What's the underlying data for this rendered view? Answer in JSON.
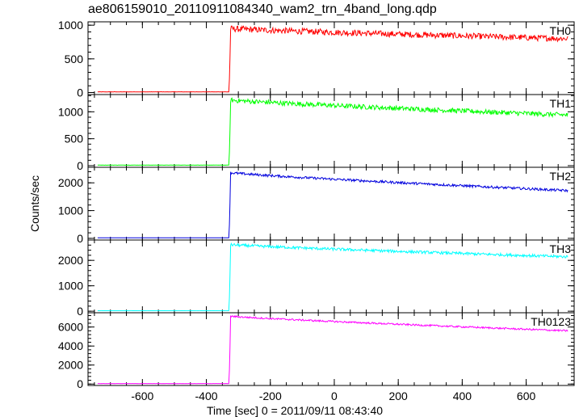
{
  "chart_data": {
    "type": "line",
    "title": "ae806159010_20110911084340_wam2_trn_4band_long.qdp",
    "xlabel": "Time [sec] 0 = 2011/09/11 08:43:40",
    "ylabel": "Counts/sec",
    "xlim": [
      -770,
      750
    ],
    "xticks": [
      -600,
      -400,
      -200,
      0,
      200,
      400,
      600
    ],
    "grid": false,
    "panels": [
      {
        "name": "TH0",
        "color": "#ff0000",
        "ylim": [
          -30,
          1050
        ],
        "yticks": [
          0,
          500,
          1000
        ],
        "pre_level": 10,
        "onset": -330,
        "peak": 950,
        "end_level": 800,
        "noise": 45
      },
      {
        "name": "TH1",
        "color": "#00ff00",
        "ylim": [
          -30,
          1320
        ],
        "yticks": [
          0,
          500,
          1000
        ],
        "pre_level": 10,
        "onset": -330,
        "peak": 1220,
        "end_level": 940,
        "noise": 45
      },
      {
        "name": "TH2",
        "color": "#0000dd",
        "ylim": [
          -60,
          2560
        ],
        "yticks": [
          0,
          1000,
          2000
        ],
        "pre_level": 20,
        "onset": -330,
        "peak": 2370,
        "end_level": 1720,
        "noise": 45
      },
      {
        "name": "TH3",
        "color": "#00ffff",
        "ylim": [
          -60,
          2800
        ],
        "yticks": [
          0,
          1000,
          2000
        ],
        "pre_level": 20,
        "onset": -330,
        "peak": 2620,
        "end_level": 2140,
        "noise": 55
      },
      {
        "name": "TH0123",
        "color": "#ff00ff",
        "ylim": [
          -150,
          7500
        ],
        "yticks": [
          0,
          2000,
          4000,
          6000
        ],
        "pre_level": 50,
        "onset": -330,
        "peak": 7150,
        "end_level": 5600,
        "noise": 90
      }
    ]
  }
}
